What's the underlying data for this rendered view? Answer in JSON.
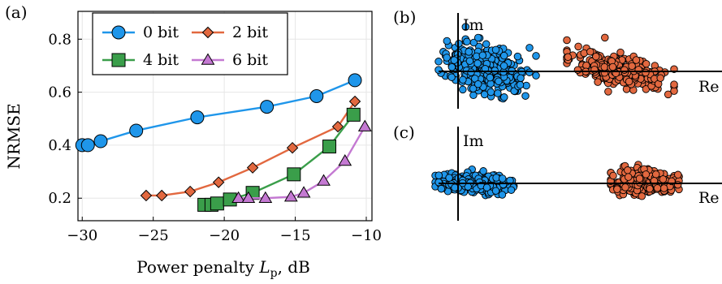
{
  "panel_labels": {
    "a": "(a)",
    "b": "(b)",
    "c": "(c)"
  },
  "colors": {
    "bit0": "#1f96ea",
    "bit2": "#e2683f",
    "bit4": "#3a9e4a",
    "bit6": "#c479d2",
    "scatter_blue": "#1f96ea",
    "scatter_orange": "#e2683f"
  },
  "chart_data": [
    {
      "type": "line",
      "panel": "(a)",
      "xlabel_prefix": "Power penalty ",
      "xlabel_symbol": "L",
      "xlabel_subscript": "p",
      "xlabel_suffix": ", dB",
      "ylabel": "NRMSE",
      "xlim": [
        -30.3,
        -9.6
      ],
      "ylim": [
        0.115,
        0.905
      ],
      "xticks": [
        -30,
        -25,
        -20,
        -15,
        -10
      ],
      "xtick_labels": [
        "−30",
        "−25",
        "−20",
        "−15",
        "−10"
      ],
      "yticks": [
        0.2,
        0.4,
        0.6,
        0.8
      ],
      "ytick_labels": [
        "0.2",
        "0.4",
        "0.6",
        "0.8"
      ],
      "grid": true,
      "legend_position": "top-center",
      "series": [
        {
          "name": "0 bit",
          "marker": "circle",
          "color": "#1f96ea",
          "x": [
            -30.0,
            -29.6,
            -28.7,
            -26.2,
            -21.9,
            -17.0,
            -13.5,
            -10.8
          ],
          "y": [
            0.4,
            0.4,
            0.415,
            0.455,
            0.505,
            0.545,
            0.585,
            0.645
          ]
        },
        {
          "name": "2 bit",
          "marker": "diamond",
          "color": "#e2683f",
          "x": [
            -25.5,
            -24.4,
            -22.4,
            -20.4,
            -18.0,
            -15.2,
            -12.0,
            -10.8
          ],
          "y": [
            0.21,
            0.21,
            0.225,
            0.26,
            0.315,
            0.39,
            0.47,
            0.565
          ]
        },
        {
          "name": "4 bit",
          "marker": "square",
          "color": "#3a9e4a",
          "x": [
            -21.4,
            -20.9,
            -20.5,
            -19.6,
            -18.0,
            -15.1,
            -12.6,
            -10.9
          ],
          "y": [
            0.175,
            0.175,
            0.18,
            0.195,
            0.22,
            0.29,
            0.395,
            0.515
          ]
        },
        {
          "name": "6 bit",
          "marker": "triangle",
          "color": "#c479d2",
          "x": [
            -19.0,
            -18.3,
            -17.1,
            -15.3,
            -14.4,
            -13.0,
            -11.5,
            -10.1
          ],
          "y": [
            0.2,
            0.2,
            0.2,
            0.205,
            0.22,
            0.265,
            0.34,
            0.47
          ]
        }
      ]
    },
    {
      "type": "scatter",
      "panel": "(b)",
      "xlabel": "Re",
      "ylabel": "Im",
      "clusters": [
        {
          "color": "#1f96ea",
          "center": [
            0.0,
            0.0
          ],
          "count": 330
        },
        {
          "color": "#e2683f",
          "center": [
            1.0,
            0.0
          ],
          "count": 300
        }
      ]
    },
    {
      "type": "scatter",
      "panel": "(c)",
      "xlabel": "Re",
      "ylabel": "Im",
      "clusters": [
        {
          "color": "#1f96ea",
          "center": [
            0.0,
            0.0
          ],
          "count": 300
        },
        {
          "color": "#e2683f",
          "center": [
            1.0,
            0.0
          ],
          "count": 260
        }
      ]
    }
  ]
}
